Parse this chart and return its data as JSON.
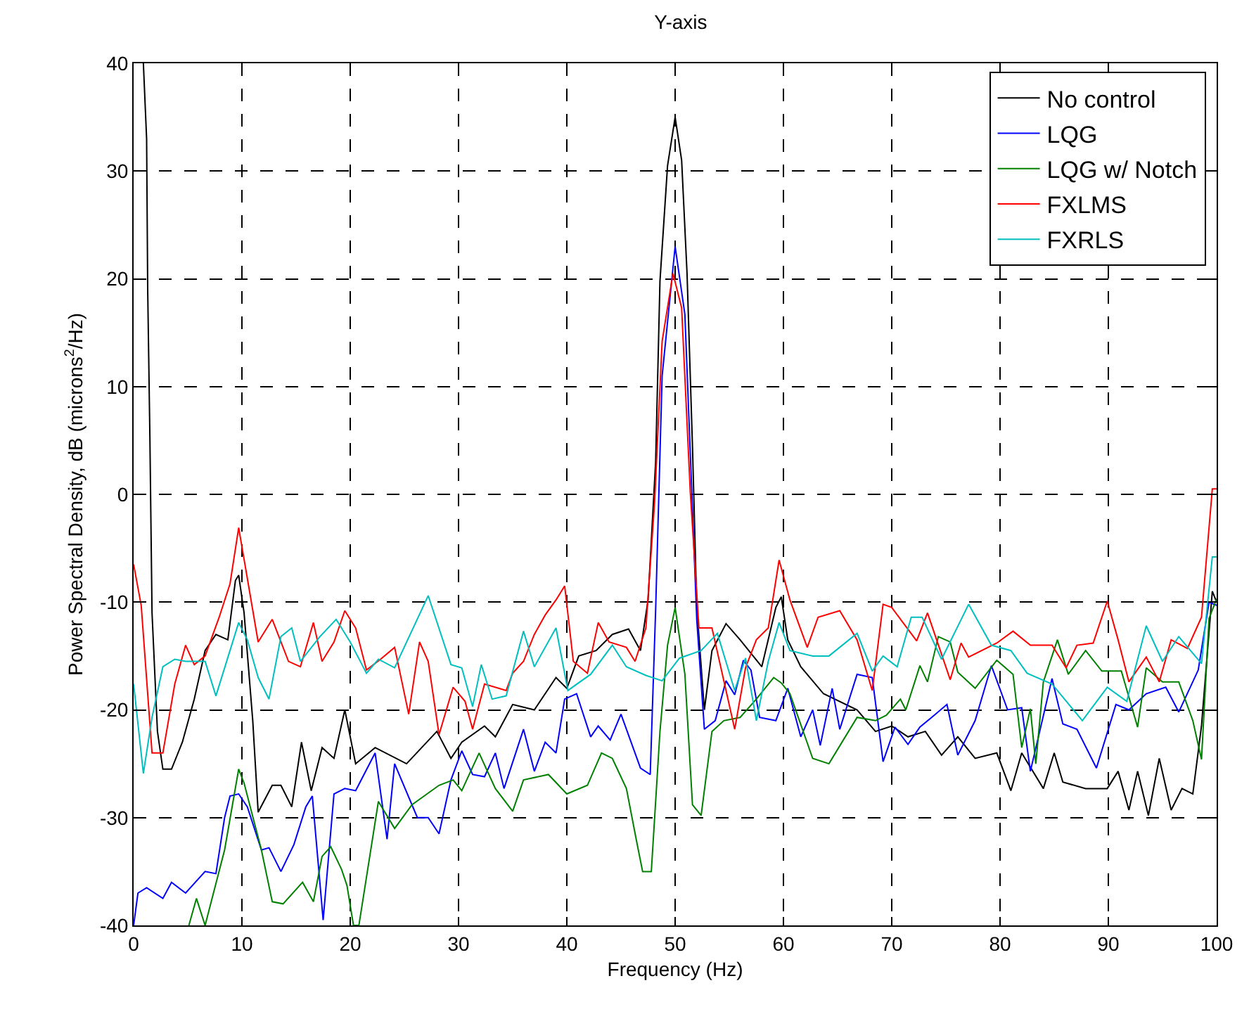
{
  "chart_data": {
    "type": "line",
    "title": "Y-axis",
    "xlabel": "Frequency (Hz)",
    "ylabel": "Power Spectral Density, dB (microns$^{2}$/Hz)",
    "xlim": [
      0,
      100
    ],
    "xticks": [
      0,
      10,
      20,
      30,
      40,
      50,
      60,
      70,
      80,
      90,
      100
    ],
    "ylim": [
      -40,
      40
    ],
    "yticks": [
      -40,
      -30,
      -20,
      -10,
      0,
      10,
      20,
      30,
      40
    ],
    "grid": true,
    "legend": "top right",
    "line_style": "solid",
    "series": [
      {
        "name": "No control",
        "color": "#000000",
        "x": [
          0.9,
          1.2,
          1.3,
          1.5,
          1.7,
          2.2,
          2.7,
          3.5,
          4.5,
          5.6,
          6.6,
          7.6,
          8.7,
          9.4,
          9.7,
          10.2,
          11,
          11.5,
          12.8,
          13.6,
          14.6,
          15.5,
          16.4,
          17.4,
          18.5,
          19.5,
          20.5,
          22.3,
          25.2,
          28,
          29.3,
          30.3,
          32.4,
          33.4,
          35,
          37,
          39,
          40,
          41.1,
          42.7,
          44.2,
          45.7,
          46.8,
          47.5,
          48.2,
          48.6,
          49.3,
          50,
          50.6,
          51.1,
          51.6,
          52,
          52.7,
          53.4,
          54.7,
          56,
          58,
          59.3,
          59.8,
          60.4,
          61.6,
          63.7,
          66.8,
          68.5,
          70,
          71.5,
          73.1,
          74.6,
          76.1,
          77.7,
          79.7,
          81,
          82,
          84,
          85,
          85.8,
          87.9,
          89.9,
          90.9,
          91.9,
          92.7,
          93.7,
          94.7,
          95.8,
          96.8,
          97.8,
          98.6,
          99.6,
          100
        ],
        "values": [
          40,
          33,
          19,
          5.5,
          -11,
          -22,
          -25.5,
          -25.5,
          -23,
          -19,
          -14.5,
          -13,
          -13.5,
          -8,
          -7.5,
          -11,
          -21,
          -29.5,
          -27,
          -27,
          -29,
          -23,
          -27.5,
          -23.5,
          -24.5,
          -20,
          -25,
          -23.5,
          -25,
          -22,
          -24.5,
          -23,
          -21.5,
          -22.5,
          -19.5,
          -20,
          -17,
          -18,
          -15,
          -14.5,
          -13,
          -12.5,
          -14.5,
          -9.8,
          3,
          19.8,
          30.5,
          35,
          31,
          20.5,
          4.5,
          -10.5,
          -20,
          -14.5,
          -12,
          -13.5,
          -16,
          -10.5,
          -9.5,
          -13.5,
          -16,
          -18.5,
          -20,
          -22,
          -21.5,
          -22.5,
          -22,
          -24.2,
          -22.5,
          -24.5,
          -24,
          -27.5,
          -24,
          -27.3,
          -24,
          -26.7,
          -27.3,
          -27.3,
          -25.7,
          -29.3,
          -25.7,
          -29.8,
          -24.5,
          -29.3,
          -27.3,
          -27.8,
          -21.5,
          -9,
          -10
        ]
      },
      {
        "name": "LQG",
        "color": "#0000ff",
        "x": [
          0,
          0.4,
          1.2,
          2.7,
          3.5,
          4.8,
          6.6,
          7.6,
          8.4,
          8.9,
          9.7,
          10.5,
          11.8,
          12.5,
          13.6,
          14.8,
          15.9,
          16.5,
          17.5,
          18.5,
          19.5,
          20.5,
          22.3,
          23.4,
          24.1,
          26.2,
          27.2,
          28.2,
          29.3,
          30.3,
          31.3,
          32.4,
          33.4,
          34.2,
          36,
          37,
          38,
          39,
          39.8,
          40.9,
          42.2,
          42.9,
          44,
          45,
          46.8,
          47.7,
          48.2,
          48.8,
          50,
          50.9,
          51.4,
          52,
          52.7,
          53.7,
          54.7,
          55.5,
          56.3,
          57,
          57.8,
          59.3,
          60.4,
          61.6,
          62.7,
          63.4,
          64.5,
          65.2,
          66.8,
          68.2,
          69.2,
          70.3,
          71.5,
          72.6,
          73.8,
          75.1,
          76.1,
          77.7,
          79.2,
          80.7,
          82,
          82.8,
          84.8,
          85.8,
          87.1,
          88.9,
          90.7,
          91.9,
          93.5,
          95.3,
          96.5,
          98.3,
          99.3,
          100
        ],
        "values": [
          -40,
          -37,
          -36.5,
          -37.5,
          -36,
          -37,
          -35,
          -35.2,
          -30,
          -28,
          -27.8,
          -29,
          -33,
          -32.8,
          -35,
          -32.5,
          -29,
          -28,
          -39.5,
          -27.8,
          -27.3,
          -27.5,
          -24,
          -32,
          -25,
          -30,
          -30,
          -31.5,
          -26.5,
          -23.8,
          -26,
          -26.2,
          -24,
          -27.3,
          -21.8,
          -25.7,
          -23,
          -24,
          -19,
          -18.5,
          -22.5,
          -21.5,
          -22.8,
          -20.4,
          -25.4,
          -26,
          -10.7,
          11,
          23,
          16.7,
          3.8,
          -11.7,
          -21.8,
          -21,
          -17.3,
          -18.6,
          -15.4,
          -16.3,
          -20.7,
          -21,
          -18,
          -22.5,
          -20,
          -23.3,
          -18,
          -21.8,
          -16.7,
          -17,
          -24.8,
          -21.6,
          -23.2,
          -21.6,
          -20.6,
          -19.5,
          -24.2,
          -21,
          -15.9,
          -20,
          -19.8,
          -25.7,
          -17.1,
          -21.3,
          -21.8,
          -25.4,
          -19.5,
          -20,
          -18.5,
          -17.9,
          -20.2,
          -16.3,
          -10,
          -10.3
        ]
      },
      {
        "name": "LQG w/ Notch",
        "color": "#008000",
        "x": [
          5.1,
          5.8,
          6.6,
          8.4,
          9.7,
          10.2,
          11.8,
          12.8,
          13.8,
          15.6,
          16.6,
          17.4,
          18.2,
          19.2,
          19.7,
          20.3,
          20.8,
          22.6,
          24.1,
          25.7,
          28.2,
          29.5,
          30.3,
          31.9,
          33.4,
          35,
          36,
          38.3,
          40,
          41.9,
          43.2,
          44.2,
          45.5,
          46.5,
          47,
          47.8,
          48.6,
          49.3,
          50,
          50.9,
          51.6,
          52.4,
          53.4,
          54.5,
          56,
          57.5,
          59.1,
          59.8,
          60.6,
          62.7,
          64.2,
          66.8,
          68.5,
          69.5,
          70.8,
          71.3,
          72.6,
          73.3,
          74.3,
          75.4,
          76.1,
          77.7,
          79.7,
          81.2,
          82,
          82.8,
          83.3,
          84,
          85.3,
          86.3,
          87.9,
          89.4,
          91.2,
          92.7,
          93.5,
          95,
          96.5,
          97.8,
          98.6,
          99.3,
          100
        ],
        "values": [
          -40,
          -37.5,
          -40,
          -33,
          -25.5,
          -26.8,
          -33,
          -37.8,
          -38,
          -36,
          -37.8,
          -33.6,
          -32.7,
          -34.8,
          -36.3,
          -40,
          -40,
          -28.5,
          -31,
          -28.8,
          -27,
          -26.5,
          -27.5,
          -24,
          -27.3,
          -29.4,
          -26.5,
          -26,
          -27.8,
          -27,
          -24,
          -24.5,
          -27.3,
          -32.5,
          -35,
          -35,
          -22,
          -14,
          -10.5,
          -16.7,
          -28.8,
          -29.8,
          -22,
          -21,
          -20.7,
          -19,
          -17,
          -17.5,
          -18.5,
          -24.5,
          -25,
          -20.7,
          -21,
          -20.5,
          -19,
          -20,
          -15.9,
          -17.4,
          -13.2,
          -13.7,
          -16.5,
          -18,
          -15.4,
          -16.7,
          -23.5,
          -19.9,
          -25,
          -17.4,
          -13.5,
          -16.7,
          -14.5,
          -16.4,
          -16.4,
          -21.6,
          -16.1,
          -17.4,
          -17.4,
          -21,
          -24.6,
          -11.5,
          -9.7
        ]
      },
      {
        "name": "FXLMS",
        "color": "#ff0000",
        "x": [
          0,
          0.7,
          1.7,
          2.7,
          3.8,
          4.8,
          5.6,
          6.6,
          7.9,
          8.9,
          9.7,
          10.5,
          11.5,
          12.8,
          14.3,
          15.4,
          16.6,
          17.4,
          18.5,
          19.5,
          20.5,
          21.5,
          22.8,
          24.1,
          25.4,
          26.4,
          27.2,
          28.2,
          29.5,
          30.6,
          31.3,
          32.4,
          34.4,
          35,
          36,
          37,
          38,
          39,
          39.8,
          40.6,
          41.9,
          42.9,
          43.9,
          45.5,
          46.3,
          47.3,
          48.1,
          48.8,
          49.8,
          50.6,
          51.4,
          52.2,
          53.4,
          54.7,
          55.5,
          56.5,
          57.5,
          58.6,
          59.6,
          60.6,
          62.2,
          63.2,
          65.2,
          66.8,
          68.2,
          69.2,
          70,
          72.3,
          73.3,
          75.4,
          76.4,
          77.1,
          79.7,
          81.2,
          82.8,
          84.8,
          86.1,
          87.1,
          88.6,
          89.9,
          90.9,
          91.9,
          93.5,
          94.7,
          95.8,
          97.3,
          98.6,
          99.6,
          100
        ],
        "values": [
          -6.5,
          -10.3,
          -24,
          -24,
          -17.6,
          -14,
          -15.8,
          -15,
          -11.4,
          -8.3,
          -3.1,
          -7.8,
          -13.7,
          -11.6,
          -15.5,
          -16,
          -11.9,
          -15.5,
          -13.7,
          -10.8,
          -12.4,
          -16.3,
          -15.3,
          -14.2,
          -20.4,
          -13.7,
          -15.5,
          -22.3,
          -17.9,
          -19.2,
          -21.8,
          -17.6,
          -18.2,
          -16.6,
          -15.5,
          -13,
          -11.2,
          -9.8,
          -8.5,
          -15.5,
          -16.6,
          -11.9,
          -13.7,
          -14.2,
          -15.5,
          -12.4,
          -0.8,
          14.2,
          20.5,
          17.3,
          0.2,
          -12.4,
          -12.4,
          -18.2,
          -21.8,
          -16.1,
          -13.5,
          -12.4,
          -6.1,
          -9.8,
          -14.2,
          -11.4,
          -10.8,
          -13.5,
          -18.2,
          -10.2,
          -10.5,
          -13.6,
          -11,
          -17.2,
          -13.8,
          -15.1,
          -13.8,
          -12.7,
          -14,
          -14,
          -16.1,
          -14,
          -13.8,
          -9.9,
          -13.5,
          -17.4,
          -15.1,
          -17.4,
          -13.5,
          -14.3,
          -11.4,
          0.5,
          0.5
        ]
      },
      {
        "name": "FXRLS",
        "color": "#00bfbf",
        "x": [
          0,
          0.9,
          1.7,
          2.7,
          3.8,
          4.8,
          6.6,
          7.6,
          9.7,
          10.5,
          11.5,
          12.5,
          13.6,
          14.6,
          15.4,
          17.2,
          18.7,
          20,
          21.5,
          22.6,
          24.1,
          27.2,
          29.3,
          30.3,
          31.3,
          32.1,
          33.1,
          34.4,
          36,
          37,
          39,
          40.1,
          42.2,
          44.2,
          45.5,
          47.3,
          48.8,
          50.4,
          52.4,
          53.9,
          55.5,
          56.5,
          57.5,
          58.6,
          59.6,
          60.6,
          62.7,
          64.2,
          66.8,
          68.2,
          69.2,
          70.5,
          71.8,
          72.8,
          74.6,
          77.1,
          79.2,
          81,
          82.5,
          84.8,
          87.6,
          89.9,
          91.7,
          93.5,
          95,
          96.5,
          98.6,
          99.6,
          100
        ],
        "values": [
          -17.6,
          -25.9,
          -20.7,
          -16,
          -15.3,
          -15.5,
          -15.5,
          -18.7,
          -11.9,
          -13.5,
          -17,
          -19,
          -13.2,
          -12.4,
          -15.5,
          -13.2,
          -11.6,
          -13.7,
          -16.6,
          -15.3,
          -16.1,
          -9.4,
          -15.8,
          -16.1,
          -19.7,
          -15.8,
          -19,
          -18.7,
          -12.7,
          -16,
          -12.4,
          -18.2,
          -16.7,
          -14,
          -16,
          -16.8,
          -17.3,
          -15.2,
          -14.5,
          -12.9,
          -18.2,
          -15.2,
          -21,
          -15.5,
          -11.9,
          -14.5,
          -15,
          -15,
          -12.9,
          -16.4,
          -15,
          -16,
          -11.4,
          -11.4,
          -15.3,
          -10.2,
          -14,
          -14.5,
          -16.6,
          -17.6,
          -21,
          -17.9,
          -19.2,
          -12.2,
          -15.5,
          -13.2,
          -15.7,
          -5.8,
          -5.8
        ]
      }
    ]
  }
}
